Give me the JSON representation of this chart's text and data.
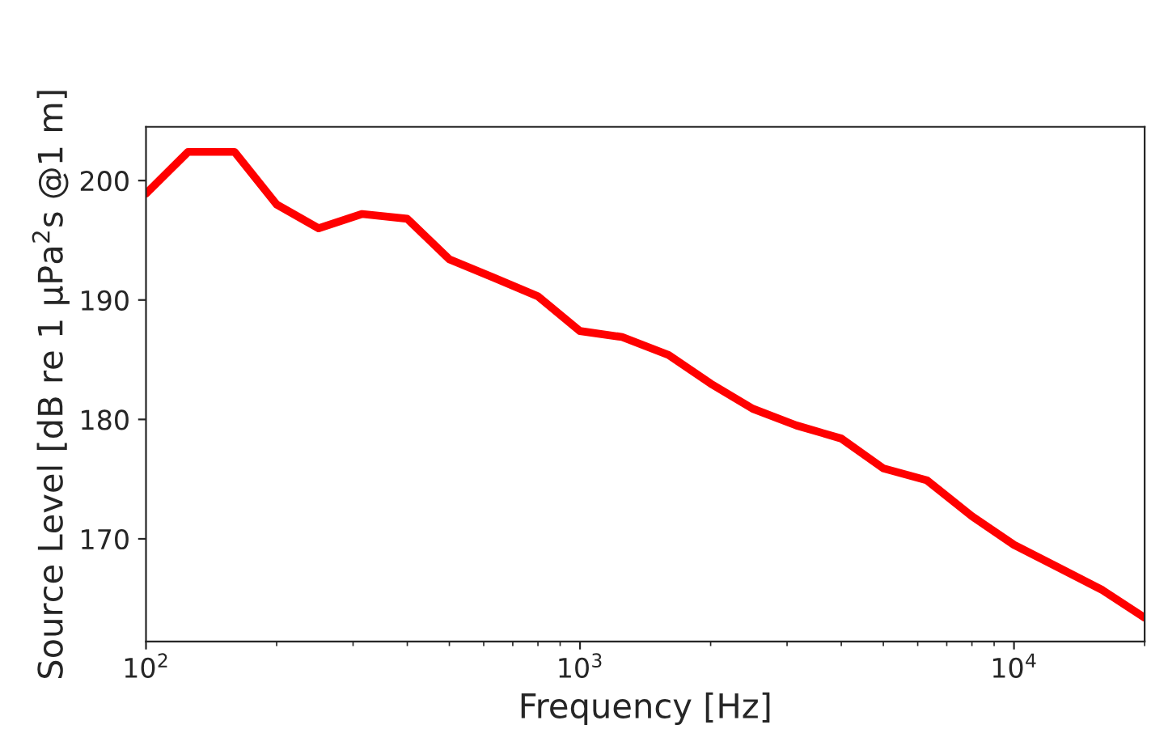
{
  "chart_data": {
    "type": "line",
    "xlabel": "Frequency [Hz]",
    "ylabel": "Source Level [dB re 1 μPa$^{2}$s @1 m]",
    "log": "x",
    "grid": false,
    "legend": false,
    "marker": "none",
    "line_style": "solid",
    "xlim": [
      100,
      20000
    ],
    "xticks": [
      {
        "value": 100,
        "label": "10$^{2}$"
      },
      {
        "value": 1000,
        "label": "10$^{3}$"
      },
      {
        "value": 10000,
        "label": "10$^{4}$"
      }
    ],
    "ylim": [
      161.4,
      204.5
    ],
    "yticks": [
      170,
      180,
      190,
      200
    ],
    "series": [
      {
        "color": "#ff0000",
        "x": [
          100,
          125,
          160,
          200,
          250,
          315,
          400,
          500,
          630,
          800,
          1000,
          1250,
          1600,
          2000,
          2500,
          3150,
          4000,
          5000,
          6300,
          8000,
          10000,
          12500,
          16000,
          20000
        ],
        "values": [
          198.9,
          202.4,
          202.4,
          198.0,
          196.0,
          197.2,
          196.8,
          193.4,
          191.9,
          190.3,
          187.4,
          186.9,
          185.4,
          183.0,
          180.9,
          179.5,
          178.4,
          175.9,
          174.9,
          171.9,
          169.5,
          167.7,
          165.7,
          163.4
        ]
      }
    ]
  }
}
